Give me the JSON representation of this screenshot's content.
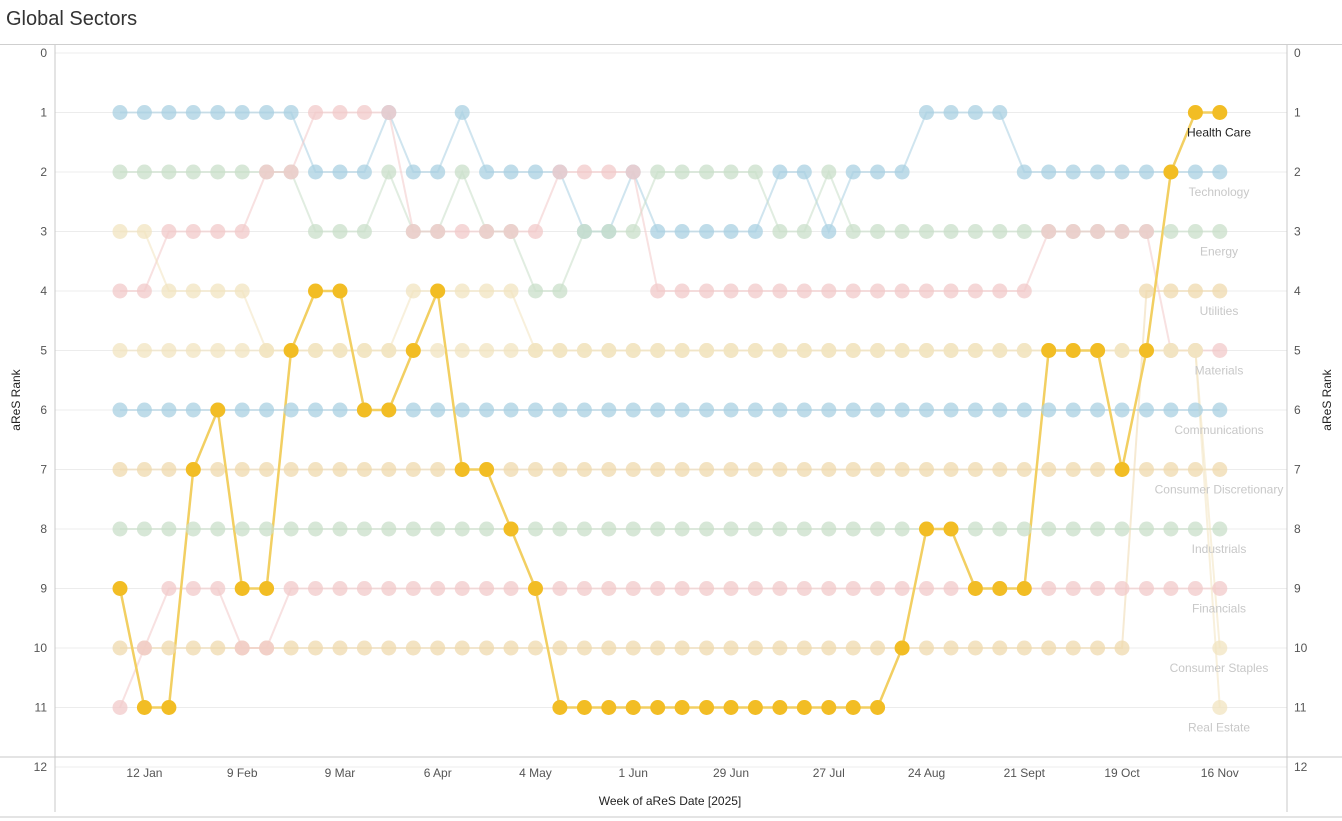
{
  "title": "Global Sectors",
  "colors": {
    "highlight": "#f2bd24",
    "highlight_line": "#f2cf62",
    "grid": "#ececec",
    "axis": "#c8c8c8",
    "label_dim": "#c8c8c8",
    "label_active": "#222222"
  },
  "chart_data": {
    "type": "line",
    "title": "Global Sectors",
    "xlabel": "Week of aReS Date [2025]",
    "ylabel_left": "aReS Rank",
    "ylabel_right": "aReS Rank",
    "y_ticks": [
      "0",
      "1",
      "2",
      "3",
      "4",
      "5",
      "6",
      "7",
      "8",
      "9",
      "10",
      "11",
      "12"
    ],
    "ylim": [
      0,
      12
    ],
    "y_reversed": true,
    "x_tick_labels": [
      "12 Jan",
      "9 Feb",
      "9 Mar",
      "6 Apr",
      "4 May",
      "1 Jun",
      "29 Jun",
      "27 Jul",
      "24 Aug",
      "21 Sept",
      "19 Oct",
      "16 Nov"
    ],
    "x_tick_weeks": [
      1,
      5,
      9,
      13,
      17,
      21,
      25,
      29,
      33,
      37,
      41,
      45
    ],
    "weeks": 46,
    "highlight_series": "Health Care",
    "series": [
      {
        "name": "Health Care",
        "color": "#f2bd24",
        "ranks": [
          9,
          11,
          11,
          7,
          6,
          9,
          9,
          5,
          4,
          4,
          6,
          6,
          5,
          4,
          7,
          7,
          8,
          9,
          11,
          11,
          11,
          11,
          11,
          11,
          11,
          11,
          11,
          11,
          11,
          11,
          11,
          11,
          10,
          8,
          8,
          9,
          9,
          9,
          5,
          5,
          5,
          7,
          5,
          2,
          1,
          1
        ]
      },
      {
        "name": "Technology",
        "color": "#a9d0e2",
        "ranks": [
          1,
          1,
          1,
          1,
          1,
          1,
          1,
          1,
          2,
          2,
          2,
          1,
          2,
          2,
          1,
          2,
          2,
          2,
          2,
          3,
          3,
          2,
          3,
          3,
          3,
          3,
          3,
          2,
          2,
          3,
          2,
          2,
          2,
          1,
          1,
          1,
          1,
          2,
          2,
          2,
          2,
          2,
          2,
          2,
          2,
          2
        ]
      },
      {
        "name": "Energy",
        "color": "#c9dfc9",
        "ranks": [
          2,
          2,
          2,
          2,
          2,
          2,
          2,
          2,
          3,
          3,
          3,
          2,
          3,
          3,
          2,
          3,
          3,
          4,
          4,
          3,
          3,
          3,
          2,
          2,
          2,
          2,
          2,
          3,
          3,
          2,
          3,
          3,
          3,
          3,
          3,
          3,
          3,
          3,
          3,
          3,
          3,
          3,
          3,
          3,
          3,
          3
        ]
      },
      {
        "name": "Utilities",
        "color": "#efd9ae",
        "ranks": [
          10,
          10,
          10,
          10,
          10,
          10,
          10,
          10,
          10,
          10,
          10,
          10,
          10,
          10,
          10,
          10,
          10,
          10,
          10,
          10,
          10,
          10,
          10,
          10,
          10,
          10,
          10,
          10,
          10,
          10,
          10,
          10,
          10,
          10,
          10,
          10,
          10,
          10,
          10,
          10,
          10,
          10,
          4,
          4,
          4,
          4
        ]
      },
      {
        "name": "Materials",
        "color": "#f2c9c9",
        "ranks": [
          4,
          4,
          3,
          3,
          3,
          3,
          2,
          2,
          1,
          1,
          1,
          1,
          3,
          3,
          3,
          3,
          3,
          3,
          2,
          2,
          2,
          2,
          4,
          4,
          4,
          4,
          4,
          4,
          4,
          4,
          4,
          4,
          4,
          4,
          4,
          4,
          4,
          4,
          3,
          3,
          3,
          3,
          3,
          5,
          5,
          5
        ]
      },
      {
        "name": "Communications",
        "color": "#a9d0e2",
        "ranks": [
          6,
          6,
          6,
          6,
          6,
          6,
          6,
          6,
          6,
          6,
          6,
          6,
          6,
          6,
          6,
          6,
          6,
          6,
          6,
          6,
          6,
          6,
          6,
          6,
          6,
          6,
          6,
          6,
          6,
          6,
          6,
          6,
          6,
          6,
          6,
          6,
          6,
          6,
          6,
          6,
          6,
          6,
          6,
          6,
          6,
          6
        ]
      },
      {
        "name": "Consumer Discretionary",
        "color": "#efd9ae",
        "ranks": [
          7,
          7,
          7,
          7,
          7,
          7,
          7,
          7,
          7,
          7,
          7,
          7,
          7,
          7,
          7,
          7,
          7,
          7,
          7,
          7,
          7,
          7,
          7,
          7,
          7,
          7,
          7,
          7,
          7,
          7,
          7,
          7,
          7,
          7,
          7,
          7,
          7,
          7,
          7,
          7,
          7,
          7,
          7,
          7,
          7,
          7
        ]
      },
      {
        "name": "Industrials",
        "color": "#c9dfc9",
        "ranks": [
          8,
          8,
          8,
          8,
          8,
          8,
          8,
          8,
          8,
          8,
          8,
          8,
          8,
          8,
          8,
          8,
          8,
          8,
          8,
          8,
          8,
          8,
          8,
          8,
          8,
          8,
          8,
          8,
          8,
          8,
          8,
          8,
          8,
          8,
          8,
          8,
          8,
          8,
          8,
          8,
          8,
          8,
          8,
          8,
          8,
          8
        ]
      },
      {
        "name": "Financials",
        "color": "#f2c9c9",
        "ranks": [
          11,
          10,
          9,
          9,
          9,
          10,
          10,
          9,
          9,
          9,
          9,
          9,
          9,
          9,
          9,
          9,
          9,
          9,
          9,
          9,
          9,
          9,
          9,
          9,
          9,
          9,
          9,
          9,
          9,
          9,
          9,
          9,
          9,
          9,
          9,
          9,
          9,
          9,
          9,
          9,
          9,
          9,
          9,
          9,
          9,
          9
        ]
      },
      {
        "name": "Consumer Staples",
        "color": "#f2e4c0",
        "ranks": [
          5,
          5,
          5,
          5,
          5,
          5,
          5,
          5,
          5,
          5,
          5,
          5,
          5,
          5,
          5,
          5,
          5,
          5,
          5,
          5,
          5,
          5,
          5,
          5,
          5,
          5,
          5,
          5,
          5,
          5,
          5,
          5,
          5,
          5,
          5,
          5,
          5,
          5,
          5,
          5,
          5,
          5,
          5,
          5,
          5,
          10
        ]
      },
      {
        "name": "Real Estate",
        "color": "#f2e4c0",
        "ranks": [
          3,
          3,
          4,
          4,
          4,
          4,
          5,
          5,
          5,
          5,
          5,
          5,
          4,
          4,
          4,
          4,
          4,
          5,
          5,
          5,
          5,
          5,
          5,
          5,
          5,
          5,
          5,
          5,
          5,
          5,
          5,
          5,
          5,
          5,
          5,
          5,
          5,
          5,
          5,
          5,
          5,
          5,
          5,
          5,
          5,
          11
        ]
      }
    ],
    "end_labels": [
      {
        "name": "Health Care",
        "rank": 1
      },
      {
        "name": "Technology",
        "rank": 2
      },
      {
        "name": "Energy",
        "rank": 3
      },
      {
        "name": "Utilities",
        "rank": 4
      },
      {
        "name": "Materials",
        "rank": 5
      },
      {
        "name": "Communications",
        "rank": 6
      },
      {
        "name": "Consumer Discretionary",
        "rank": 7
      },
      {
        "name": "Industrials",
        "rank": 8
      },
      {
        "name": "Financials",
        "rank": 9
      },
      {
        "name": "Consumer Staples",
        "rank": 10
      },
      {
        "name": "Real Estate",
        "rank": 11
      }
    ],
    "grid": true
  }
}
